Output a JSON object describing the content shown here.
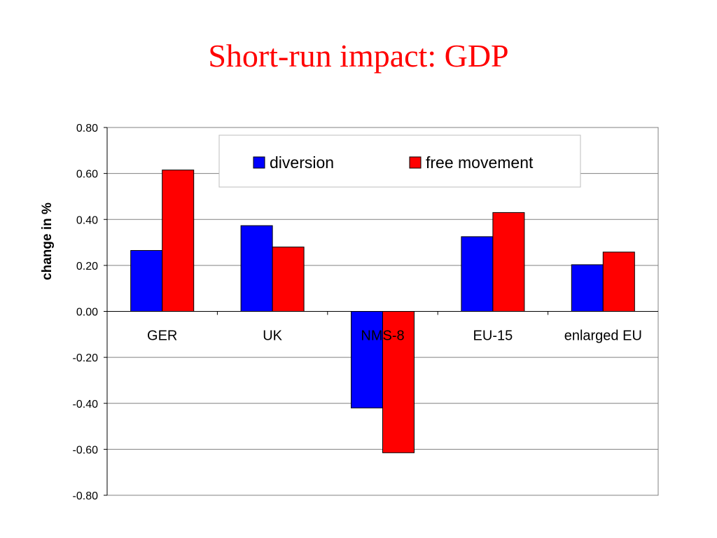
{
  "slide": {
    "title": "Short-run impact: GDP",
    "title_color": "#ff0000"
  },
  "chart_data": {
    "type": "bar",
    "title": "",
    "xlabel": "",
    "ylabel": "change in %",
    "categories": [
      "GER",
      "UK",
      "NMS-8",
      "EU-15",
      "enlarged EU"
    ],
    "series": [
      {
        "name": "diversion",
        "color": "#0000ff",
        "values": [
          0.265,
          0.373,
          -0.42,
          0.325,
          0.203
        ]
      },
      {
        "name": "free movement",
        "color": "#ff0000",
        "values": [
          0.615,
          0.28,
          -0.615,
          0.43,
          0.258
        ]
      }
    ],
    "ylim": [
      -0.8,
      0.8
    ],
    "yticks": [
      "0.80",
      "0.60",
      "0.40",
      "0.20",
      "0.00",
      "-0.20",
      "-0.40",
      "-0.60",
      "-0.80"
    ],
    "grid": true,
    "legend_position": "top-right"
  }
}
